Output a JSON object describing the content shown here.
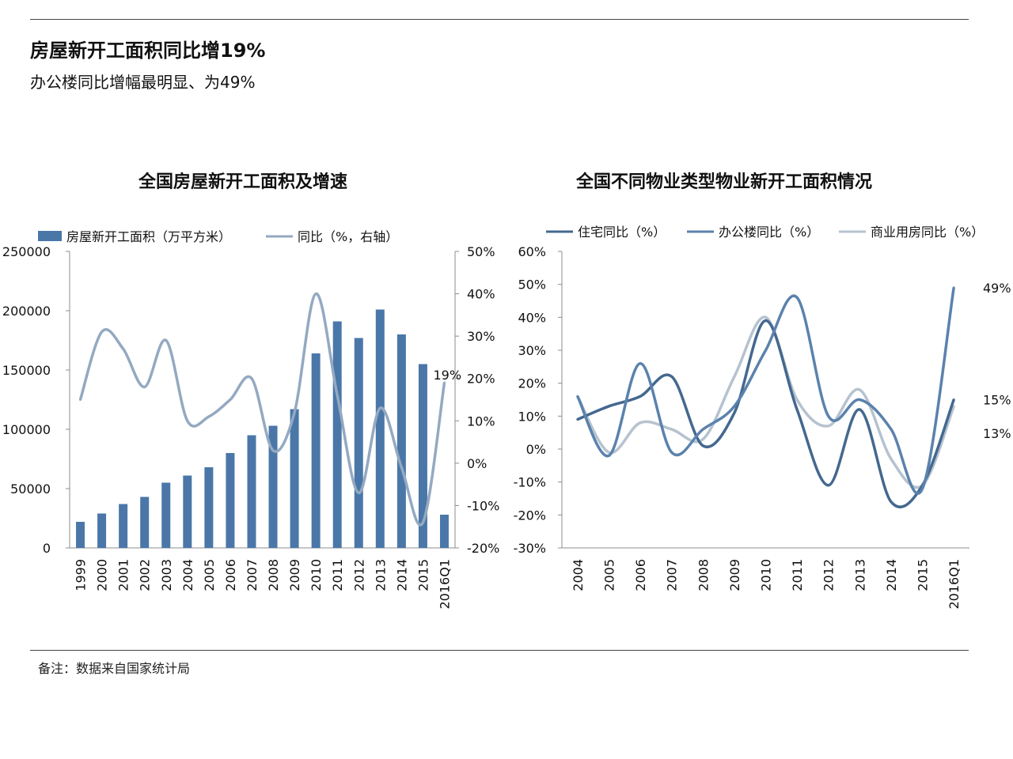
{
  "header": {
    "title": "房屋新开工面积同比增19%",
    "subtitle": "办公楼同比增幅最明显、为49%"
  },
  "footnote": "备注：数据来自国家统计局",
  "colors": {
    "bar": "#4a77a8",
    "yoy_line": "#94a9c1",
    "residential": "#44688f",
    "office": "#5b82ad",
    "commercial": "#b6c2cf",
    "axis": "#8c8c8c",
    "rule": "#444444"
  },
  "chart_data": [
    {
      "type": "bar",
      "title": "全国房屋新开工面积及增速",
      "categories": [
        "1999",
        "2000",
        "2001",
        "2002",
        "2003",
        "2004",
        "2005",
        "2006",
        "2007",
        "2008",
        "2009",
        "2010",
        "2011",
        "2012",
        "2013",
        "2014",
        "2015",
        "2016Q1"
      ],
      "series": [
        {
          "name": "房屋新开工面积（万平方米）",
          "kind": "bar",
          "axis": "left",
          "values": [
            22000,
            29000,
            37000,
            43000,
            55000,
            61000,
            68000,
            80000,
            95000,
            103000,
            117000,
            164000,
            191000,
            177000,
            201000,
            180000,
            155000,
            28000
          ]
        },
        {
          "name": "同比（%，右轴）",
          "kind": "line",
          "axis": "right",
          "values": [
            15,
            31,
            27,
            18,
            29,
            10,
            11,
            15,
            20,
            3,
            12,
            40,
            16,
            -7,
            13,
            -1,
            -14,
            19
          ]
        }
      ],
      "yleft": {
        "min": 0,
        "max": 250000,
        "ticks": [
          "0",
          "50000",
          "100000",
          "150000",
          "200000",
          "250000"
        ]
      },
      "yright": {
        "min": -20,
        "max": 50,
        "ticks": [
          "-20%",
          "-10%",
          "0%",
          "10%",
          "20%",
          "30%",
          "40%",
          "50%"
        ]
      },
      "annotations": [
        {
          "series": 1,
          "index": 17,
          "text": "19%"
        }
      ]
    },
    {
      "type": "line",
      "title": "全国不同物业类型物业新开工面积情况",
      "categories": [
        "2004",
        "2005",
        "2006",
        "2007",
        "2008",
        "2009",
        "2010",
        "2011",
        "2012",
        "2013",
        "2014",
        "2015",
        "2016Q1"
      ],
      "series": [
        {
          "name": "住宅同比（%）",
          "values": [
            9,
            13,
            16,
            22,
            1,
            11,
            39,
            12,
            -11,
            12,
            -16,
            -11,
            15
          ]
        },
        {
          "name": "办公楼同比（%）",
          "values": [
            16,
            -2,
            26,
            -1,
            6,
            13,
            30,
            46,
            10,
            15,
            6,
            -12,
            49
          ]
        },
        {
          "name": "商业用房同比（%）",
          "values": [
            16,
            -1,
            8,
            6,
            3,
            22,
            40,
            15,
            7,
            18,
            -3,
            -11,
            13
          ]
        }
      ],
      "yaxis": {
        "min": -30,
        "max": 60,
        "ticks": [
          "-30%",
          "-20%",
          "-10%",
          "0%",
          "10%",
          "20%",
          "30%",
          "40%",
          "50%",
          "60%"
        ]
      },
      "annotations": [
        {
          "text": "49%",
          "near_series": 1
        },
        {
          "text": "15%",
          "near_series": 0
        },
        {
          "text": "13%",
          "near_series": 2
        }
      ]
    }
  ]
}
